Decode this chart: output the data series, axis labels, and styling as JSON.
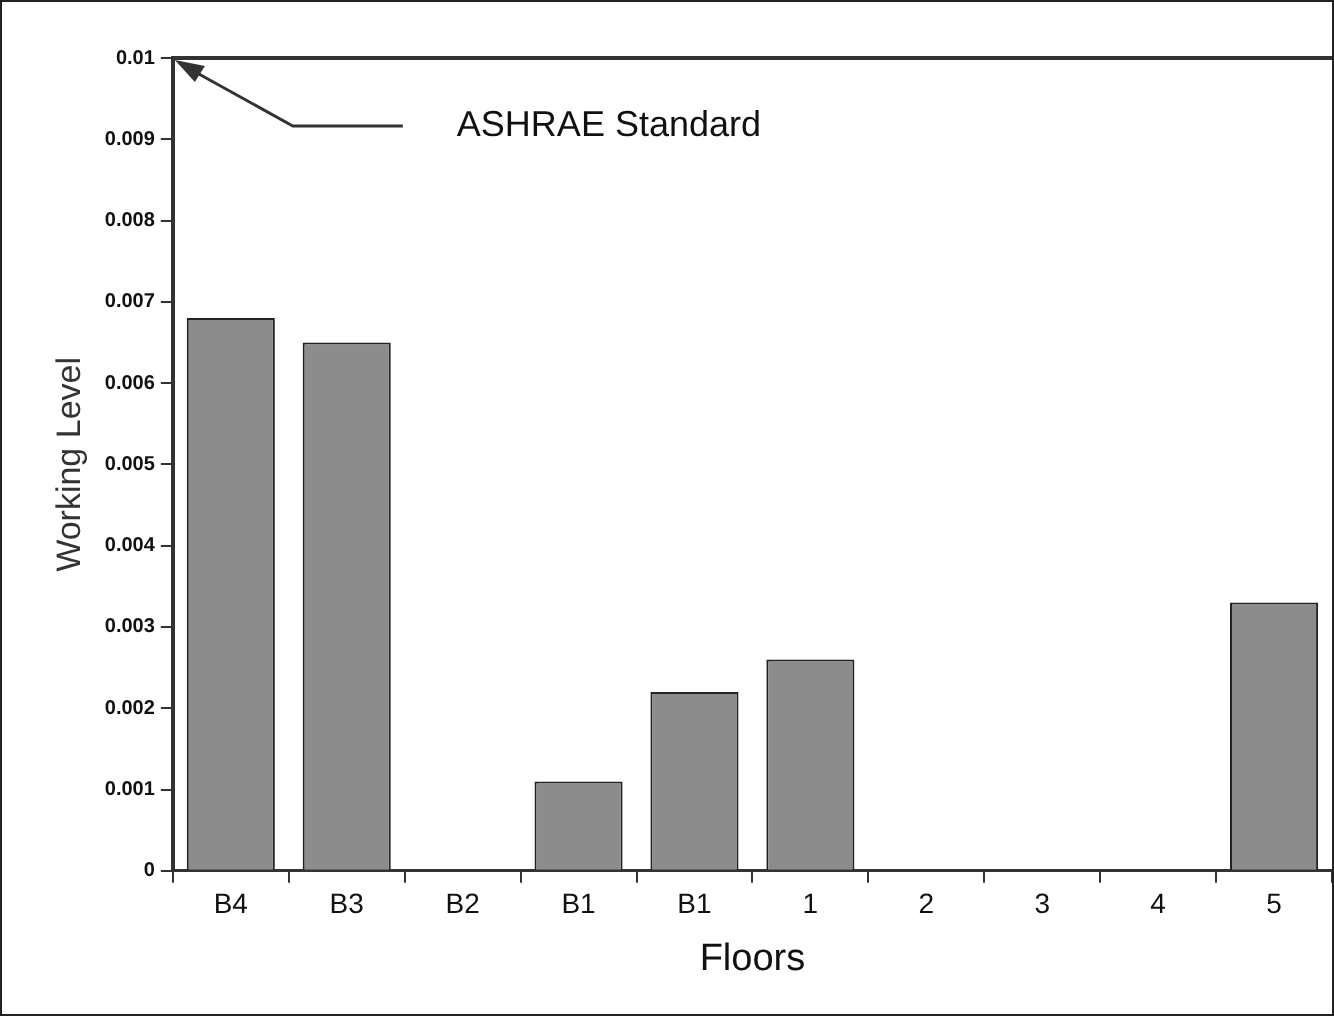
{
  "chart_data": {
    "type": "bar",
    "xlabel": "Floors",
    "ylabel": "Working Level",
    "categories": [
      "B4",
      "B3",
      "B2",
      "B1",
      "B1",
      "1",
      "2",
      "3",
      "4",
      "5"
    ],
    "values": [
      0.0068,
      0.0065,
      0,
      0.0011,
      0.0022,
      0.0026,
      0,
      0,
      0,
      0.0033
    ],
    "color": "#8c8c8c",
    "ylim": [
      0,
      0.01
    ],
    "yticks": [
      0,
      0.001,
      0.002,
      0.003,
      0.004,
      0.005,
      0.006,
      0.007,
      0.008,
      0.009,
      0.01
    ],
    "grid": false,
    "legend": false,
    "ref_lines": [
      {
        "axis": "y",
        "value": 0.01,
        "label": "ASHRAE Standard",
        "color": "#333333"
      }
    ]
  }
}
